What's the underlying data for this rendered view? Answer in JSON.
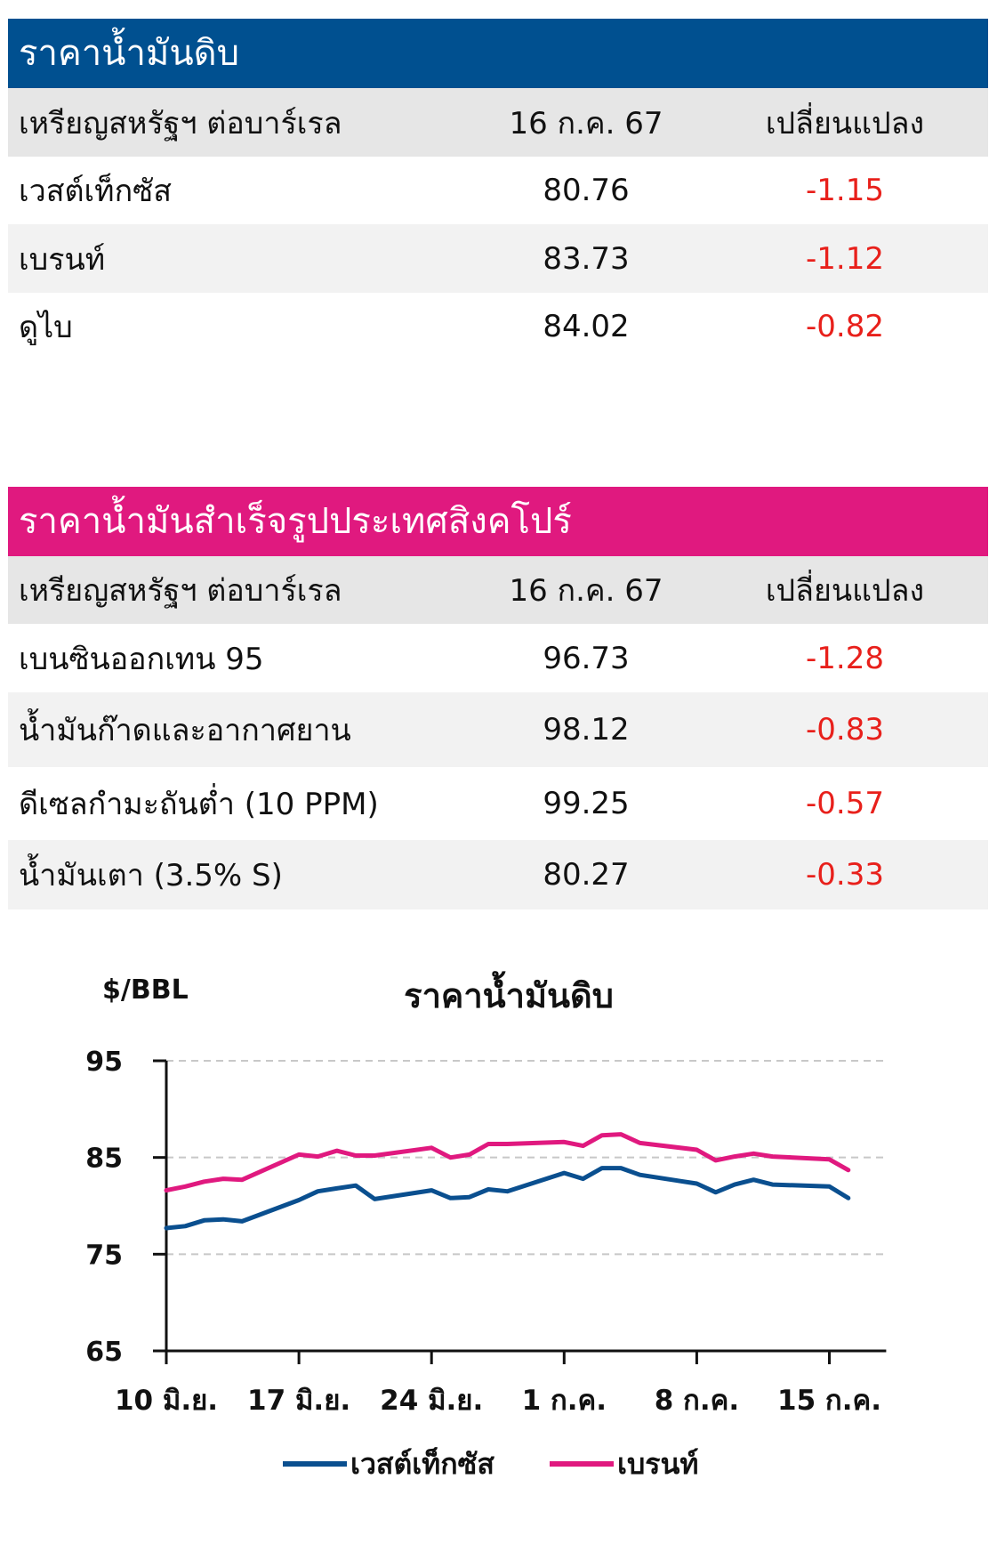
{
  "crude": {
    "title": "ราคาน้ำมันดิบ",
    "title_bg": "#005090",
    "header": [
      "เหรียญสหรัฐฯ ต่อบาร์เรล",
      "16 ก.ค. 67",
      "เปลี่ยนแปลง"
    ],
    "rows": [
      {
        "name": "เวสต์เท็กซัส",
        "price": "80.76",
        "change": "-1.15"
      },
      {
        "name": "เบรนท์",
        "price": "83.73",
        "change": "-1.12"
      },
      {
        "name": "ดูไบ",
        "price": "84.02",
        "change": "-0.82"
      }
    ]
  },
  "refined": {
    "title": "ราคาน้ำมันสำเร็จรูปประเทศสิงคโปร์",
    "title_bg": "#e0197f",
    "header": [
      "เหรียญสหรัฐฯ ต่อบาร์เรล",
      "16 ก.ค. 67",
      "เปลี่ยนแปลง"
    ],
    "rows": [
      {
        "name": "เบนซินออกเทน 95",
        "price": "96.73",
        "change": "-1.28"
      },
      {
        "name": "น้ำมันก๊าดและอากาศยาน",
        "price": "98.12",
        "change": "-0.83"
      },
      {
        "name": "ดีเซลกำมะถันต่ำ (10 PPM)",
        "price": "99.25",
        "change": "-0.57"
      },
      {
        "name": "น้ำมันเตา (3.5% S)",
        "price": "80.27",
        "change": "-0.33"
      }
    ]
  },
  "colors": {
    "negative": "#e8201b",
    "wti": "#0a4f8f",
    "brent": "#e0197f"
  },
  "chart_data": {
    "type": "line",
    "title": "ราคาน้ำมันดิบ",
    "ylabel": "$/BBL",
    "ylim": [
      65,
      95
    ],
    "yticks": [
      95,
      85,
      75,
      65
    ],
    "grid": "horizontal dashed",
    "legend": "bottom-center",
    "xlim_days": [
      0,
      38
    ],
    "xticks": [
      {
        "day": 0,
        "label": "10 มิ.ย."
      },
      {
        "day": 7,
        "label": "17 มิ.ย."
      },
      {
        "day": 14,
        "label": "24 มิ.ย."
      },
      {
        "day": 21,
        "label": "1 ก.ค."
      },
      {
        "day": 28,
        "label": "8 ก.ค."
      },
      {
        "day": 35,
        "label": "15 ก.ค."
      }
    ],
    "x": [
      "10 มิ.ย.",
      "11 มิ.ย.",
      "12 มิ.ย.",
      "13 มิ.ย.",
      "14 มิ.ย.",
      "17 มิ.ย.",
      "18 มิ.ย.",
      "19 มิ.ย.",
      "20 มิ.ย.",
      "21 มิ.ย.",
      "24 มิ.ย.",
      "25 มิ.ย.",
      "26 มิ.ย.",
      "27 มิ.ย.",
      "28 มิ.ย.",
      "1 ก.ค.",
      "2 ก.ค.",
      "3 ก.ค.",
      "4 ก.ค.",
      "5 ก.ค.",
      "8 ก.ค.",
      "9 ก.ค.",
      "10 ก.ค.",
      "11 ก.ค.",
      "12 ก.ค.",
      "15 ก.ค.",
      "16 ก.ค."
    ],
    "x_days": [
      0,
      1,
      2,
      3,
      4,
      7,
      8,
      9,
      10,
      11,
      14,
      15,
      16,
      17,
      18,
      21,
      22,
      23,
      24,
      25,
      28,
      29,
      30,
      31,
      32,
      35,
      36
    ],
    "series": [
      {
        "name": "เวสต์เท็กซัส",
        "color": "#0a4f8f",
        "values": [
          77.7,
          77.9,
          78.5,
          78.6,
          78.4,
          80.6,
          81.5,
          81.8,
          82.1,
          80.7,
          81.6,
          80.8,
          80.9,
          81.7,
          81.5,
          83.4,
          82.8,
          83.9,
          83.9,
          83.2,
          82.3,
          81.4,
          82.2,
          82.7,
          82.2,
          82.0,
          80.8
        ]
      },
      {
        "name": "เบรนท์",
        "color": "#e0197f",
        "values": [
          81.6,
          82.0,
          82.5,
          82.8,
          82.7,
          85.3,
          85.1,
          85.7,
          85.2,
          85.2,
          86.0,
          85.0,
          85.3,
          86.4,
          86.4,
          86.6,
          86.2,
          87.3,
          87.4,
          86.5,
          85.8,
          84.7,
          85.1,
          85.4,
          85.1,
          84.8,
          83.7
        ]
      }
    ]
  }
}
